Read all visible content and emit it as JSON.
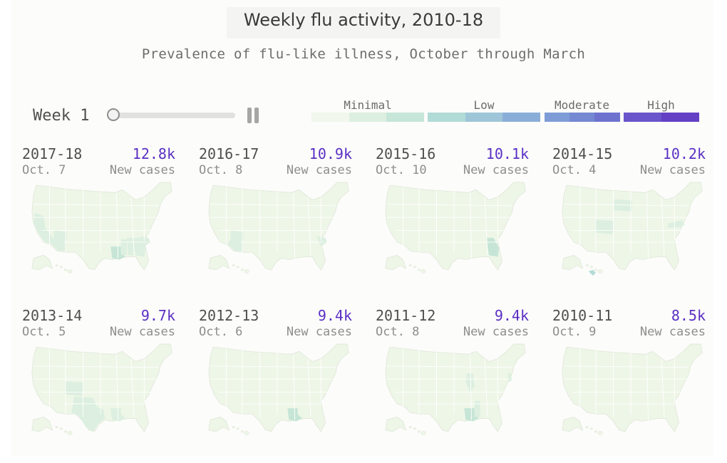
{
  "title": "Weekly flu activity, 2010-18",
  "subtitle": "Prevalence of flu-like illness, October through March",
  "controls": {
    "week_label": "Week 1",
    "week_value": 1,
    "slider_fraction": 0,
    "pause_icon": "pause-icon"
  },
  "legend": {
    "items": [
      {
        "label": "Minimal",
        "colors": [
          "#f1f7ec",
          "#dcefe0",
          "#c5e6d8"
        ]
      },
      {
        "label": "Low",
        "colors": [
          "#b1dbd7",
          "#9ec6d8",
          "#8aaed8"
        ]
      },
      {
        "label": "Moderate",
        "colors": [
          "#7e9dd7",
          "#7588d2",
          "#6e72cf"
        ]
      },
      {
        "label": "High",
        "colors": [
          "#6a55ca",
          "#6340c4"
        ]
      }
    ]
  },
  "colors": {
    "accent": "#5a2fc4",
    "map_base": "#eef6e7",
    "map_border": "#ffffff",
    "minimal_mid": "#dcefe0",
    "minimal_high": "#c6e5d6",
    "low": "#b2dcd8"
  },
  "chart_data": {
    "type": "heatmap",
    "series_label": "New cases",
    "panels": [
      {
        "season": "2017-18",
        "date": "Oct. 7",
        "cases_label": "12.8k",
        "cases": 12800,
        "new_cases_label": "New cases",
        "highlighted_states": [
          {
            "state": "CA",
            "level": "minimal-mid"
          },
          {
            "state": "AZ",
            "level": "minimal-mid"
          },
          {
            "state": "LA",
            "level": "minimal-high"
          },
          {
            "state": "MS",
            "level": "minimal-mid"
          },
          {
            "state": "AL",
            "level": "minimal-mid"
          },
          {
            "state": "GA",
            "level": "minimal-mid"
          },
          {
            "state": "SC",
            "level": "minimal-mid"
          }
        ]
      },
      {
        "season": "2016-17",
        "date": "Oct. 8",
        "cases_label": "10.9k",
        "cases": 10900,
        "new_cases_label": "New cases",
        "highlighted_states": [
          {
            "state": "AZ",
            "level": "minimal-mid"
          },
          {
            "state": "SC",
            "level": "minimal-mid"
          }
        ]
      },
      {
        "season": "2015-16",
        "date": "Oct. 10",
        "cases_label": "10.1k",
        "cases": 10100,
        "new_cases_label": "New cases",
        "highlighted_states": [
          {
            "state": "GA",
            "level": "minimal-high"
          }
        ]
      },
      {
        "season": "2014-15",
        "date": "Oct. 4",
        "cases_label": "10.2k",
        "cases": 10200,
        "new_cases_label": "New cases",
        "highlighted_states": [
          {
            "state": "SD",
            "level": "minimal-mid"
          },
          {
            "state": "CO",
            "level": "minimal-mid"
          },
          {
            "state": "VA",
            "level": "minimal-mid"
          },
          {
            "state": "HI",
            "level": "low"
          }
        ]
      },
      {
        "season": "2013-14",
        "date": "Oct. 5",
        "cases_label": "9.7k",
        "cases": 9700,
        "new_cases_label": "New cases",
        "highlighted_states": [
          {
            "state": "CO",
            "level": "minimal-mid"
          },
          {
            "state": "TX",
            "level": "minimal-mid"
          },
          {
            "state": "LA",
            "level": "minimal-mid"
          }
        ]
      },
      {
        "season": "2012-13",
        "date": "Oct. 6",
        "cases_label": "9.4k",
        "cases": 9400,
        "new_cases_label": "New cases",
        "highlighted_states": [
          {
            "state": "LA",
            "level": "minimal-high"
          }
        ]
      },
      {
        "season": "2011-12",
        "date": "Oct. 8",
        "cases_label": "9.4k",
        "cases": 9400,
        "new_cases_label": "New cases",
        "highlighted_states": [
          {
            "state": "IL",
            "level": "minimal-mid"
          },
          {
            "state": "LA",
            "level": "minimal-high"
          },
          {
            "state": "MS",
            "level": "minimal-mid"
          },
          {
            "state": "NJ",
            "level": "minimal-mid"
          }
        ]
      },
      {
        "season": "2010-11",
        "date": "Oct. 9",
        "cases_label": "8.5k",
        "cases": 8500,
        "new_cases_label": "New cases",
        "highlighted_states": []
      }
    ]
  }
}
